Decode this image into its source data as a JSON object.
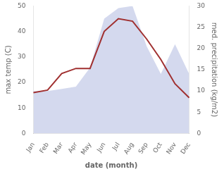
{
  "chart_data": {
    "type": "line",
    "xlabel": "date (month)",
    "ylabel": "max temp (C)",
    "y2label": "med. precipitation (kg/m2)",
    "categories": [
      "Jan",
      "Feb",
      "Mar",
      "Apr",
      "May",
      "Jun",
      "Jul",
      "Aug",
      "Sep",
      "Oct",
      "Nov",
      "Dec"
    ],
    "series": [
      {
        "type": "area",
        "color": "#c5cce8",
        "axis": "y2",
        "values": [
          10.0,
          10.0,
          10.5,
          11.0,
          15.5,
          27.0,
          29.5,
          30.0,
          20.5,
          14.0,
          21.0,
          14.0
        ]
      },
      {
        "type": "line",
        "color": "#a03030",
        "values": [
          16.0,
          17.0,
          23.5,
          25.5,
          25.5,
          40.0,
          45.0,
          44.0,
          37.0,
          29.0,
          19.5,
          14.0
        ]
      }
    ],
    "ylim": [
      0,
      50
    ],
    "yticks": [
      0,
      10,
      20,
      30,
      40,
      50
    ],
    "y2lim": [
      0,
      30
    ],
    "y2ticks": [
      0,
      5,
      10,
      15,
      20,
      25,
      30
    ],
    "grid": false
  }
}
